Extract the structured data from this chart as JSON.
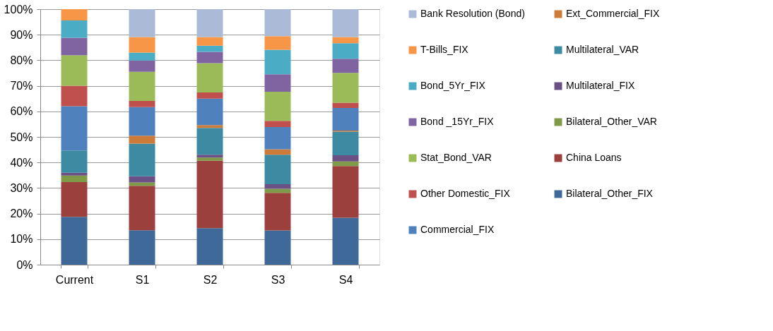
{
  "chart_data": {
    "type": "bar",
    "stacked": true,
    "categories": [
      "Current",
      "S1",
      "S2",
      "S3",
      "S4"
    ],
    "series": [
      {
        "name": "Bilateral_Other_FIX",
        "color": "#3f6998",
        "values": [
          18.7,
          13.5,
          14.3,
          13.4,
          18.4
        ]
      },
      {
        "name": "China Loans",
        "color": "#9c403e",
        "values": [
          13.6,
          17.4,
          26.4,
          14.7,
          20.2
        ]
      },
      {
        "name": "Bilateral_Other_VAR",
        "color": "#7f9a48",
        "values": [
          2.6,
          1.3,
          1.2,
          1.6,
          1.8
        ]
      },
      {
        "name": "Multilateral_FIX",
        "color": "#6a5084",
        "values": [
          1.1,
          2.4,
          1.1,
          1.8,
          2.4
        ]
      },
      {
        "name": "Multilateral_VAR",
        "color": "#3d8ba2",
        "values": [
          8.7,
          12.8,
          10.5,
          11.5,
          9.3
        ]
      },
      {
        "name": "Ext_Commercial_FIX",
        "color": "#cc7b38",
        "values": [
          0,
          3.1,
          1.1,
          2.2,
          0.4
        ]
      },
      {
        "name": "Commercial_FIX",
        "color": "#4f81bd",
        "values": [
          17.3,
          11.2,
          10.4,
          8.7,
          8.8
        ]
      },
      {
        "name": "Other Domestic_FIX",
        "color": "#c0504d",
        "values": [
          8.0,
          2.4,
          2.4,
          2.4,
          2.1
        ]
      },
      {
        "name": "Stat_Bond_VAR",
        "color": "#9bbb59",
        "values": [
          12.0,
          11.4,
          11.5,
          11.4,
          11.7
        ]
      },
      {
        "name": "Bond _15Yr_FIX",
        "color": "#8064a2",
        "values": [
          6.8,
          4.4,
          4.4,
          6.8,
          5.5
        ]
      },
      {
        "name": "Bond_5Yr_FIX",
        "color": "#4bacc6",
        "values": [
          6.8,
          3.1,
          2.4,
          9.6,
          6.1
        ]
      },
      {
        "name": "T-Bills_FIX",
        "color": "#f79646",
        "values": [
          4.4,
          6.1,
          3.4,
          5.3,
          2.4
        ]
      },
      {
        "name": "Bank Resolution (Bond)",
        "color": "#aabad7",
        "values": [
          0,
          10.9,
          10.9,
          10.6,
          10.9
        ]
      }
    ],
    "ylim": [
      0,
      100
    ],
    "yticks": [
      {
        "value": 0,
        "label": "0%"
      },
      {
        "value": 10,
        "label": "10%"
      },
      {
        "value": 20,
        "label": "20%"
      },
      {
        "value": 30,
        "label": "30%"
      },
      {
        "value": 40,
        "label": "40%"
      },
      {
        "value": 50,
        "label": "50%"
      },
      {
        "value": 60,
        "label": "60%"
      },
      {
        "value": 70,
        "label": "70%"
      },
      {
        "value": 80,
        "label": "80%"
      },
      {
        "value": 90,
        "label": "90%"
      },
      {
        "value": 100,
        "label": "100%"
      }
    ],
    "grid": "y",
    "legend": "right"
  }
}
